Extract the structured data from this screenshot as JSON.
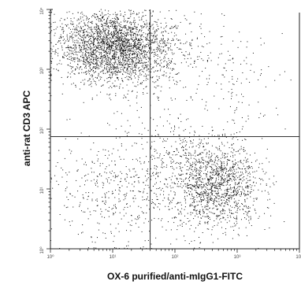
{
  "chart_data": {
    "type": "scatter",
    "title": "",
    "xlabel": "OX-6 purified/anti-mIgG1-FITC",
    "ylabel": "anti-rat CD3 APC",
    "scale": "log",
    "xlim": [
      1,
      10000
    ],
    "ylim": [
      1,
      10000
    ],
    "x_ticks": [
      "10⁰",
      "10¹",
      "10²",
      "10³",
      "10⁴"
    ],
    "y_ticks": [
      "10⁰",
      "10¹",
      "10²",
      "10³",
      "10⁴"
    ],
    "quadrant_gates": {
      "x": 40,
      "y": 75
    },
    "grid": false,
    "colors": {
      "points": "#111111",
      "axes": "#222222",
      "gate_lines": "#333333"
    },
    "populations": [
      {
        "region": "upper-left",
        "center": {
          "x": 10,
          "y": 2500
        },
        "spread_decades": {
          "x": 0.45,
          "y": 0.3
        },
        "count": 2300
      },
      {
        "region": "upper-left-tail",
        "center": {
          "x": 25,
          "y": 1800
        },
        "spread_decades": {
          "x": 0.55,
          "y": 0.35
        },
        "count": 500
      },
      {
        "region": "lower-right",
        "center": {
          "x": 500,
          "y": 12
        },
        "spread_decades": {
          "x": 0.35,
          "y": 0.35
        },
        "count": 1300
      },
      {
        "region": "lower-left",
        "center": {
          "x": 12,
          "y": 10
        },
        "spread_decades": {
          "x": 0.5,
          "y": 0.5
        },
        "count": 450
      },
      {
        "region": "lower-middle",
        "center": {
          "x": 120,
          "y": 20
        },
        "spread_decades": {
          "x": 0.4,
          "y": 0.5
        },
        "count": 350
      },
      {
        "region": "upper-right",
        "center": {
          "x": 600,
          "y": 700
        },
        "spread_decades": {
          "x": 0.5,
          "y": 0.5
        },
        "count": 150
      }
    ]
  }
}
